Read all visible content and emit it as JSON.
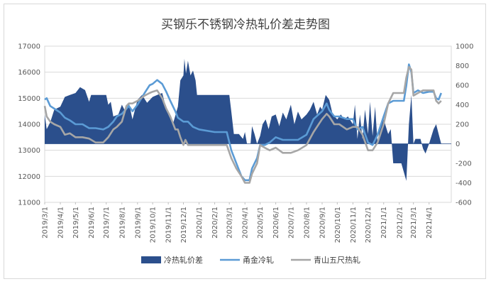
{
  "chart_data": {
    "type": "line",
    "title": "买钢乐不锈钢冷热轧价差走势图",
    "y_left": {
      "min": 11000,
      "max": 17000,
      "step": 1000
    },
    "y_right": {
      "min": -600,
      "max": 1000,
      "step": 200
    },
    "x_range": [
      "2019-03-01",
      "2021-05-15"
    ],
    "x_ticks": [
      "2019/3/1",
      "2019/4/1",
      "2019/5/1",
      "2019/6/1",
      "2019/7/1",
      "2019/8/1",
      "2019/9/1",
      "2019/10/1",
      "2019/11/1",
      "2019/12/1",
      "2020/1/1",
      "2020/2/1",
      "2020/3/1",
      "2020/4/1",
      "2020/5/1",
      "2020/6/1",
      "2020/7/1",
      "2020/8/1",
      "2020/9/1",
      "2020/10/1",
      "2020/11/1",
      "2020/12/1",
      "2021/1/1",
      "2021/2/1",
      "2021/3/1",
      "2021/4/1"
    ],
    "legend_position": "bottom",
    "series": [
      {
        "name": "冷热轧价差",
        "type": "area",
        "axis": "right",
        "color": "#2b4f8c",
        "points": [
          [
            "2019-03-01",
            300
          ],
          [
            "2019-03-05",
            150
          ],
          [
            "2019-03-12",
            220
          ],
          [
            "2019-03-20",
            350
          ],
          [
            "2019-04-01",
            380
          ],
          [
            "2019-04-10",
            480
          ],
          [
            "2019-04-20",
            500
          ],
          [
            "2019-05-01",
            520
          ],
          [
            "2019-05-10",
            580
          ],
          [
            "2019-05-20",
            550
          ],
          [
            "2019-05-28",
            430
          ],
          [
            "2019-06-01",
            500
          ],
          [
            "2019-06-10",
            500
          ],
          [
            "2019-06-20",
            500
          ],
          [
            "2019-07-01",
            500
          ],
          [
            "2019-07-05",
            400
          ],
          [
            "2019-07-10",
            430
          ],
          [
            "2019-07-15",
            280
          ],
          [
            "2019-07-25",
            300
          ],
          [
            "2019-08-01",
            400
          ],
          [
            "2019-08-08",
            330
          ],
          [
            "2019-08-15",
            420
          ],
          [
            "2019-08-22",
            250
          ],
          [
            "2019-09-01",
            450
          ],
          [
            "2019-09-10",
            500
          ],
          [
            "2019-09-20",
            420
          ],
          [
            "2019-10-01",
            480
          ],
          [
            "2019-10-10",
            500
          ],
          [
            "2019-10-20",
            520
          ],
          [
            "2019-10-25",
            420
          ],
          [
            "2019-11-01",
            300
          ],
          [
            "2019-11-10",
            200
          ],
          [
            "2019-11-20",
            380
          ],
          [
            "2019-11-25",
            650
          ],
          [
            "2019-12-01",
            700
          ],
          [
            "2019-12-03",
            870
          ],
          [
            "2019-12-06",
            720
          ],
          [
            "2019-12-10",
            850
          ],
          [
            "2019-12-15",
            700
          ],
          [
            "2019-12-20",
            750
          ],
          [
            "2019-12-25",
            650
          ],
          [
            "2019-12-28",
            500
          ],
          [
            "2020-01-05",
            500
          ],
          [
            "2020-01-20",
            500
          ],
          [
            "2020-02-05",
            500
          ],
          [
            "2020-02-20",
            500
          ],
          [
            "2020-03-01",
            500
          ],
          [
            "2020-03-05",
            330
          ],
          [
            "2020-03-10",
            100
          ],
          [
            "2020-03-20",
            100
          ],
          [
            "2020-03-28",
            50
          ],
          [
            "2020-04-01",
            120
          ],
          [
            "2020-04-05",
            0
          ],
          [
            "2020-04-12",
            0
          ],
          [
            "2020-04-15",
            180
          ],
          [
            "2020-04-20",
            100
          ],
          [
            "2020-04-25",
            0
          ],
          [
            "2020-05-01",
            80
          ],
          [
            "2020-05-06",
            200
          ],
          [
            "2020-05-12",
            250
          ],
          [
            "2020-05-18",
            150
          ],
          [
            "2020-05-24",
            280
          ],
          [
            "2020-06-01",
            300
          ],
          [
            "2020-06-08",
            180
          ],
          [
            "2020-06-15",
            320
          ],
          [
            "2020-06-22",
            250
          ],
          [
            "2020-07-01",
            400
          ],
          [
            "2020-07-08",
            200
          ],
          [
            "2020-07-15",
            330
          ],
          [
            "2020-07-22",
            250
          ],
          [
            "2020-08-01",
            300
          ],
          [
            "2020-08-08",
            350
          ],
          [
            "2020-08-15",
            430
          ],
          [
            "2020-08-22",
            300
          ],
          [
            "2020-08-28",
            380
          ],
          [
            "2020-09-01",
            350
          ],
          [
            "2020-09-08",
            500
          ],
          [
            "2020-09-15",
            450
          ],
          [
            "2020-09-22",
            300
          ],
          [
            "2020-10-01",
            250
          ],
          [
            "2020-10-08",
            300
          ],
          [
            "2020-10-15",
            250
          ],
          [
            "2020-10-22",
            280
          ],
          [
            "2020-11-01",
            200
          ],
          [
            "2020-11-05",
            400
          ],
          [
            "2020-11-10",
            50
          ],
          [
            "2020-11-15",
            300
          ],
          [
            "2020-11-20",
            50
          ],
          [
            "2020-11-25",
            350
          ],
          [
            "2020-12-01",
            100
          ],
          [
            "2020-12-05",
            430
          ],
          [
            "2020-12-10",
            80
          ],
          [
            "2020-12-15",
            380
          ],
          [
            "2020-12-20",
            0
          ],
          [
            "2020-12-25",
            200
          ],
          [
            "2021-01-01",
            250
          ],
          [
            "2021-01-10",
            100
          ],
          [
            "2021-01-15",
            150
          ],
          [
            "2021-01-20",
            -200
          ],
          [
            "2021-01-28",
            -200
          ],
          [
            "2021-02-05",
            -200
          ],
          [
            "2021-02-15",
            -380
          ],
          [
            "2021-02-20",
            200
          ],
          [
            "2021-02-25",
            500
          ],
          [
            "2021-03-01",
            0
          ],
          [
            "2021-03-05",
            50
          ],
          [
            "2021-03-15",
            50
          ],
          [
            "2021-03-20",
            -50
          ],
          [
            "2021-03-25",
            -100
          ],
          [
            "2021-04-01",
            0
          ],
          [
            "2021-04-10",
            150
          ],
          [
            "2021-04-15",
            200
          ],
          [
            "2021-04-20",
            100
          ],
          [
            "2021-04-25",
            0
          ]
        ]
      },
      {
        "name": "甬金冷轧",
        "type": "line",
        "axis": "left",
        "color": "#5b9bd5",
        "points": [
          [
            "2019-03-01",
            14950
          ],
          [
            "2019-03-05",
            15000
          ],
          [
            "2019-03-12",
            14700
          ],
          [
            "2019-03-20",
            14600
          ],
          [
            "2019-04-01",
            14450
          ],
          [
            "2019-04-10",
            14250
          ],
          [
            "2019-04-20",
            14150
          ],
          [
            "2019-05-01",
            14000
          ],
          [
            "2019-05-15",
            14000
          ],
          [
            "2019-05-28",
            13850
          ],
          [
            "2019-06-10",
            13850
          ],
          [
            "2019-06-25",
            13800
          ],
          [
            "2019-07-05",
            13900
          ],
          [
            "2019-07-15",
            14100
          ],
          [
            "2019-07-22",
            14300
          ],
          [
            "2019-08-01",
            14400
          ],
          [
            "2019-08-15",
            14700
          ],
          [
            "2019-08-22",
            14500
          ],
          [
            "2019-09-01",
            14750
          ],
          [
            "2019-09-15",
            15200
          ],
          [
            "2019-09-25",
            15500
          ],
          [
            "2019-10-01",
            15550
          ],
          [
            "2019-10-10",
            15700
          ],
          [
            "2019-10-20",
            15550
          ],
          [
            "2019-10-28",
            15250
          ],
          [
            "2019-11-05",
            14900
          ],
          [
            "2019-11-15",
            14500
          ],
          [
            "2019-11-20",
            14250
          ],
          [
            "2019-12-01",
            14100
          ],
          [
            "2019-12-10",
            14100
          ],
          [
            "2019-12-20",
            13900
          ],
          [
            "2020-01-01",
            13800
          ],
          [
            "2020-02-01",
            13700
          ],
          [
            "2020-02-25",
            13700
          ],
          [
            "2020-03-05",
            13000
          ],
          [
            "2020-03-15",
            12500
          ],
          [
            "2020-03-25",
            12000
          ],
          [
            "2020-04-01",
            11850
          ],
          [
            "2020-04-10",
            11850
          ],
          [
            "2020-04-15",
            12300
          ],
          [
            "2020-04-25",
            12700
          ],
          [
            "2020-05-01",
            13200
          ],
          [
            "2020-05-10",
            13200
          ],
          [
            "2020-05-20",
            13300
          ],
          [
            "2020-06-01",
            13500
          ],
          [
            "2020-06-15",
            13400
          ],
          [
            "2020-07-01",
            13400
          ],
          [
            "2020-07-15",
            13400
          ],
          [
            "2020-08-01",
            13600
          ],
          [
            "2020-08-15",
            14200
          ],
          [
            "2020-09-01",
            14500
          ],
          [
            "2020-09-10",
            14800
          ],
          [
            "2020-09-15",
            14550
          ],
          [
            "2020-09-25",
            14300
          ],
          [
            "2020-10-05",
            14300
          ],
          [
            "2020-10-20",
            14200
          ],
          [
            "2020-11-01",
            14200
          ],
          [
            "2020-11-10",
            13800
          ],
          [
            "2020-11-20",
            13900
          ],
          [
            "2020-12-01",
            13300
          ],
          [
            "2020-12-10",
            13200
          ],
          [
            "2020-12-20",
            13600
          ],
          [
            "2021-01-01",
            14300
          ],
          [
            "2021-01-10",
            14800
          ],
          [
            "2021-01-20",
            14900
          ],
          [
            "2021-02-01",
            14900
          ],
          [
            "2021-02-10",
            14900
          ],
          [
            "2021-02-15",
            15500
          ],
          [
            "2021-02-20",
            16300
          ],
          [
            "2021-02-25",
            16000
          ],
          [
            "2021-03-01",
            15200
          ],
          [
            "2021-03-10",
            15300
          ],
          [
            "2021-03-20",
            15200
          ],
          [
            "2021-04-01",
            15250
          ],
          [
            "2021-04-10",
            15250
          ],
          [
            "2021-04-15",
            15000
          ],
          [
            "2021-04-20",
            14950
          ],
          [
            "2021-04-25",
            15200
          ]
        ]
      },
      {
        "name": "青山五尺热轧",
        "type": "line",
        "axis": "left",
        "color": "#a6a6a6",
        "points": [
          [
            "2019-03-01",
            14700
          ],
          [
            "2019-03-05",
            14300
          ],
          [
            "2019-03-12",
            14100
          ],
          [
            "2019-03-20",
            14000
          ],
          [
            "2019-04-01",
            13900
          ],
          [
            "2019-04-10",
            13600
          ],
          [
            "2019-04-20",
            13650
          ],
          [
            "2019-05-01",
            13500
          ],
          [
            "2019-05-15",
            13500
          ],
          [
            "2019-05-28",
            13450
          ],
          [
            "2019-06-10",
            13300
          ],
          [
            "2019-06-25",
            13300
          ],
          [
            "2019-07-05",
            13500
          ],
          [
            "2019-07-15",
            13800
          ],
          [
            "2019-07-22",
            13900
          ],
          [
            "2019-08-01",
            14100
          ],
          [
            "2019-08-10",
            14700
          ],
          [
            "2019-08-15",
            14800
          ],
          [
            "2019-08-22",
            14800
          ],
          [
            "2019-09-01",
            14900
          ],
          [
            "2019-09-15",
            15100
          ],
          [
            "2019-09-25",
            15200
          ],
          [
            "2019-10-01",
            15250
          ],
          [
            "2019-10-10",
            15300
          ],
          [
            "2019-10-20",
            15000
          ],
          [
            "2019-10-28",
            14600
          ],
          [
            "2019-11-05",
            14300
          ],
          [
            "2019-11-15",
            13800
          ],
          [
            "2019-11-20",
            13800
          ],
          [
            "2019-11-25",
            13500
          ],
          [
            "2019-12-01",
            13200
          ],
          [
            "2019-12-05",
            13400
          ],
          [
            "2019-12-10",
            13200
          ],
          [
            "2019-12-20",
            13200
          ],
          [
            "2020-01-01",
            13200
          ],
          [
            "2020-02-01",
            13200
          ],
          [
            "2020-02-25",
            13200
          ],
          [
            "2020-03-05",
            12700
          ],
          [
            "2020-03-15",
            12300
          ],
          [
            "2020-03-25",
            12000
          ],
          [
            "2020-04-01",
            11750
          ],
          [
            "2020-04-10",
            11750
          ],
          [
            "2020-04-15",
            12100
          ],
          [
            "2020-04-25",
            12500
          ],
          [
            "2020-05-01",
            13200
          ],
          [
            "2020-05-10",
            13100
          ],
          [
            "2020-05-20",
            13000
          ],
          [
            "2020-06-01",
            13100
          ],
          [
            "2020-06-15",
            12900
          ],
          [
            "2020-07-01",
            12900
          ],
          [
            "2020-07-15",
            13000
          ],
          [
            "2020-08-01",
            13200
          ],
          [
            "2020-08-15",
            13700
          ],
          [
            "2020-09-01",
            14200
          ],
          [
            "2020-09-10",
            14400
          ],
          [
            "2020-09-15",
            14300
          ],
          [
            "2020-09-25",
            14000
          ],
          [
            "2020-10-05",
            14000
          ],
          [
            "2020-10-20",
            13800
          ],
          [
            "2020-11-01",
            13900
          ],
          [
            "2020-11-10",
            13900
          ],
          [
            "2020-11-20",
            13600
          ],
          [
            "2020-12-01",
            13000
          ],
          [
            "2020-12-10",
            13000
          ],
          [
            "2020-12-20",
            13300
          ],
          [
            "2021-01-01",
            14000
          ],
          [
            "2021-01-10",
            14800
          ],
          [
            "2021-01-20",
            15200
          ],
          [
            "2021-02-01",
            15200
          ],
          [
            "2021-02-10",
            15200
          ],
          [
            "2021-02-15",
            15800
          ],
          [
            "2021-02-20",
            16200
          ],
          [
            "2021-02-25",
            16100
          ],
          [
            "2021-03-01",
            15100
          ],
          [
            "2021-03-10",
            15200
          ],
          [
            "2021-03-20",
            15300
          ],
          [
            "2021-04-01",
            15300
          ],
          [
            "2021-04-10",
            15300
          ],
          [
            "2021-04-15",
            14900
          ],
          [
            "2021-04-20",
            14800
          ],
          [
            "2021-04-25",
            14900
          ]
        ]
      }
    ]
  }
}
